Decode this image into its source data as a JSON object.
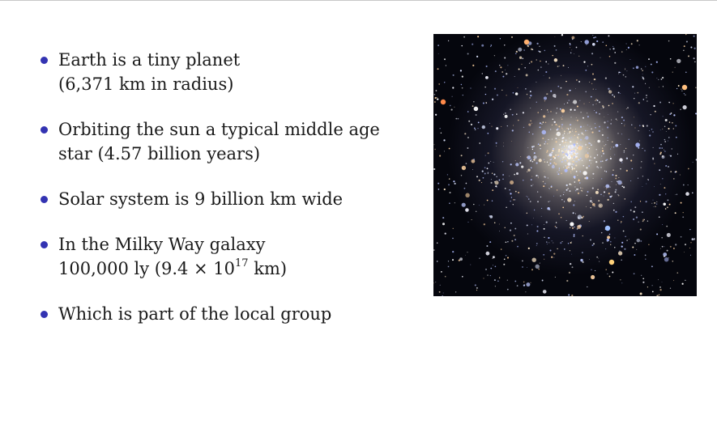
{
  "bullets": [
    {
      "lines": [
        "Earth is a tiny planet",
        "(6,371 km in radius)"
      ]
    },
    {
      "lines": [
        "Orbiting the sun a typical middle age",
        "star (4.57 billion years)"
      ]
    },
    {
      "lines": [
        "Solar system is 9 billion km wide"
      ]
    },
    {
      "lines": [
        "In the Milky Way galaxy"
      ],
      "line2_prefix": "100,000 ly (9.4 × 10",
      "line2_exponent": "17",
      "line2_suffix": " km)"
    },
    {
      "lines": [
        "Which is part of the local group"
      ]
    }
  ],
  "colors": {
    "bullet": "#3333b2",
    "text": "#1a1a1a"
  },
  "image": {
    "icon": "star-cluster-photo"
  }
}
